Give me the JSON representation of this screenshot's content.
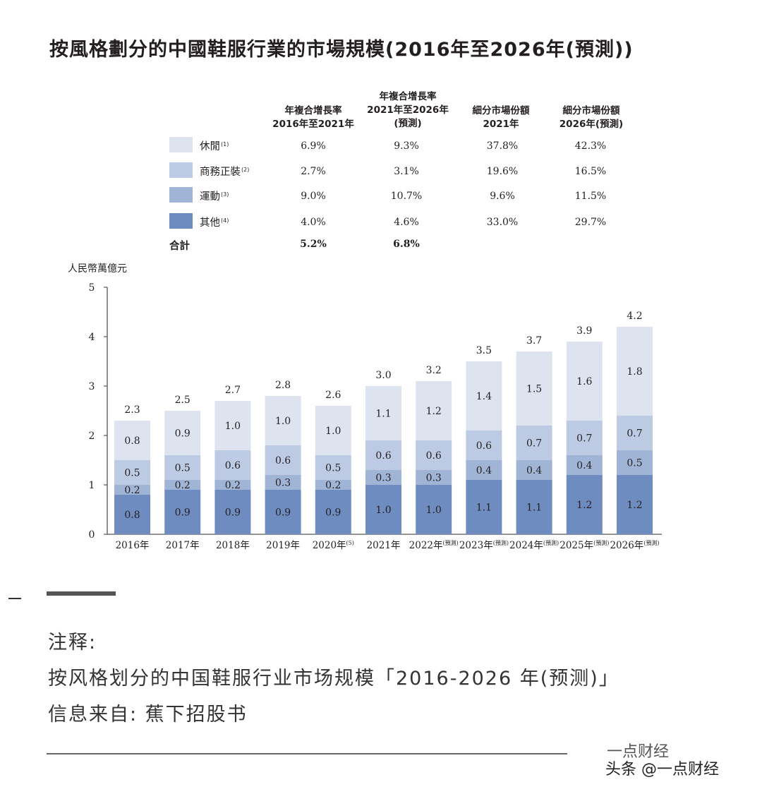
{
  "title": "按風格劃分的中國鞋服行業的市場規模(2016年至2026年(預測))",
  "table": {
    "headers": [
      [
        "年複合增長率",
        "2016年至2021年"
      ],
      [
        "年複合增長率",
        "2021年至2026年",
        "(預測)"
      ],
      [
        "細分市場份額",
        "2021年"
      ],
      [
        "細分市場份額",
        "2026年(預測)"
      ]
    ],
    "rows": [
      {
        "label": "休閒",
        "note": "(1)",
        "color": "#dde4f0",
        "values": [
          "6.9%",
          "9.3%",
          "37.8%",
          "42.3%"
        ]
      },
      {
        "label": "商務正裝",
        "note": "(2)",
        "color": "#bccbe3",
        "values": [
          "2.7%",
          "3.1%",
          "19.6%",
          "16.5%"
        ]
      },
      {
        "label": "運動",
        "note": "(3)",
        "color": "#a0b4d5",
        "values": [
          "9.0%",
          "10.7%",
          "9.6%",
          "11.5%"
        ]
      },
      {
        "label": "其他",
        "note": "(4)",
        "color": "#6e8cc0",
        "values": [
          "4.0%",
          "4.6%",
          "33.0%",
          "29.7%"
        ]
      }
    ],
    "total": {
      "label": "合計",
      "values": [
        "5.2%",
        "6.8%"
      ]
    }
  },
  "chart_data": {
    "type": "bar",
    "stacked": true,
    "ylabel": "人民幣萬億元",
    "ylim": [
      0,
      5
    ],
    "yticks": [
      "0",
      "1",
      "2",
      "3",
      "4",
      "5"
    ],
    "categories": [
      [
        "2016年"
      ],
      [
        "2017年"
      ],
      [
        "2018年"
      ],
      [
        "2019年"
      ],
      [
        "2020年",
        "(5)"
      ],
      [
        "2021年"
      ],
      [
        "2022年",
        "(預測)"
      ],
      [
        "2023年",
        "(預測)"
      ],
      [
        "2024年",
        "(預測)"
      ],
      [
        "2025年",
        "(預測)"
      ],
      [
        "2026年",
        "(預測)"
      ]
    ],
    "series": [
      {
        "name": "其他",
        "color": "#6e8cc0",
        "values": [
          0.8,
          0.9,
          0.9,
          0.9,
          0.9,
          1.0,
          1.0,
          1.1,
          1.1,
          1.2,
          1.2
        ]
      },
      {
        "name": "運動",
        "color": "#a0b4d5",
        "values": [
          0.2,
          0.2,
          0.2,
          0.3,
          0.2,
          0.3,
          0.3,
          0.4,
          0.4,
          0.4,
          0.5
        ]
      },
      {
        "name": "商務正裝",
        "color": "#bccbe3",
        "values": [
          0.5,
          0.5,
          0.6,
          0.6,
          0.5,
          0.6,
          0.6,
          0.6,
          0.7,
          0.7,
          0.7
        ]
      },
      {
        "name": "休閒",
        "color": "#dde4f0",
        "values": [
          0.8,
          0.9,
          1.0,
          1.0,
          1.0,
          1.1,
          1.2,
          1.4,
          1.5,
          1.6,
          1.8
        ]
      }
    ],
    "totals": [
      2.3,
      2.5,
      2.7,
      2.8,
      2.6,
      3.0,
      3.2,
      3.5,
      3.7,
      3.9,
      4.2
    ]
  },
  "notes": {
    "heading": "注释:",
    "line1": "按风格划分的中国鞋服行业市场规模「2016-2026 年(预测)」",
    "line2": "信息来自: 蕉下招股书"
  },
  "brand": "一点财经",
  "watermark": "头条 @一点财经"
}
